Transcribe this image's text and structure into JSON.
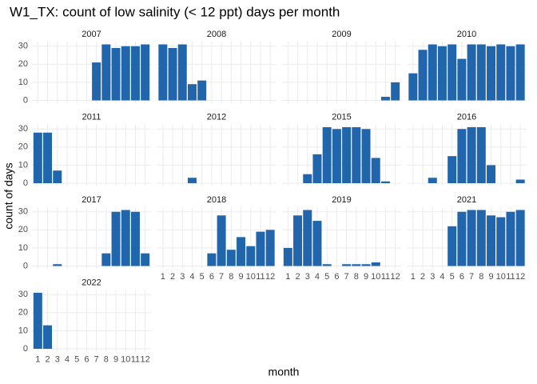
{
  "chart_data": {
    "type": "bar",
    "title": "W1_TX: count of low salinity (< 12 ppt) days per month",
    "x_label": "month",
    "y_label": "count of days",
    "categories": [
      1,
      2,
      3,
      4,
      5,
      6,
      7,
      8,
      9,
      10,
      11,
      12
    ],
    "color": "#2166ac",
    "grid": true,
    "ylim": [
      -1.55,
      32.55
    ],
    "yticks": [
      0,
      10,
      20,
      30
    ],
    "facets": [
      {
        "name": "2007",
        "values": [
          0,
          0,
          0,
          0,
          0,
          0,
          21,
          31,
          29,
          30,
          30,
          31
        ]
      },
      {
        "name": "2008",
        "values": [
          31,
          29,
          31,
          9,
          11,
          0,
          0,
          0,
          0,
          0,
          0,
          0
        ]
      },
      {
        "name": "2009",
        "values": [
          0,
          0,
          0,
          0,
          0,
          0,
          0,
          0,
          0,
          0,
          2,
          10
        ]
      },
      {
        "name": "2010",
        "values": [
          15,
          28,
          31,
          30,
          31,
          23,
          31,
          31,
          30,
          31,
          30,
          31
        ]
      },
      {
        "name": "2011",
        "values": [
          28,
          28,
          7,
          0,
          0,
          0,
          0,
          0,
          0,
          0,
          0,
          0
        ]
      },
      {
        "name": "2012",
        "values": [
          0,
          0,
          0,
          3,
          0,
          0,
          0,
          0,
          0,
          0,
          0,
          0
        ]
      },
      {
        "name": "2015",
        "values": [
          0,
          0,
          5,
          16,
          31,
          30,
          31,
          31,
          30,
          14,
          1,
          0
        ]
      },
      {
        "name": "2016",
        "values": [
          0,
          0,
          3,
          0,
          15,
          30,
          31,
          31,
          10,
          0,
          0,
          2
        ]
      },
      {
        "name": "2017",
        "values": [
          0,
          0,
          1,
          0,
          0,
          0,
          0,
          7,
          30,
          31,
          30,
          7
        ]
      },
      {
        "name": "2018",
        "values": [
          0,
          0,
          0,
          0,
          0,
          7,
          28,
          9,
          16,
          11,
          19,
          20
        ]
      },
      {
        "name": "2019",
        "values": [
          10,
          28,
          31,
          25,
          1,
          0,
          1,
          1,
          1,
          2,
          0,
          0
        ]
      },
      {
        "name": "2021",
        "values": [
          0,
          0,
          0,
          0,
          22,
          30,
          31,
          31,
          28,
          27,
          30,
          31
        ]
      },
      {
        "name": "2022",
        "values": [
          31,
          13,
          0,
          0,
          0,
          0,
          0,
          0,
          0,
          0,
          0,
          0
        ]
      }
    ]
  }
}
